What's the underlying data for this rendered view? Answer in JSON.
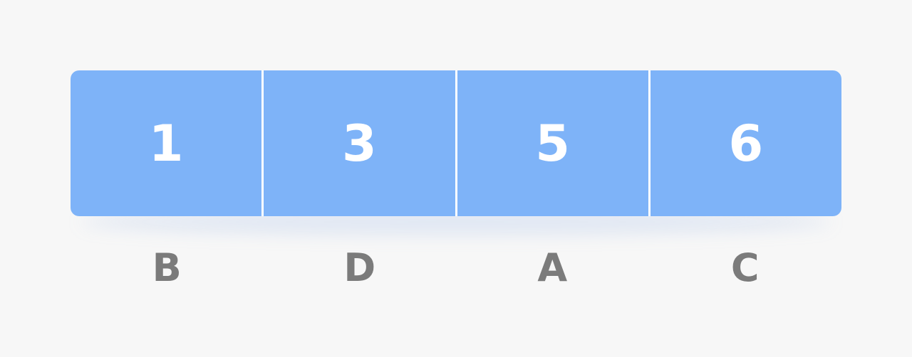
{
  "colors": {
    "cell_fill": "#7eb3f8",
    "cell_text": "#ffffff",
    "label_text": "#7b7b7b",
    "background": "#f7f7f7"
  },
  "cells": [
    {
      "value": "1",
      "label": "B"
    },
    {
      "value": "3",
      "label": "D"
    },
    {
      "value": "5",
      "label": "A"
    },
    {
      "value": "6",
      "label": "C"
    }
  ]
}
